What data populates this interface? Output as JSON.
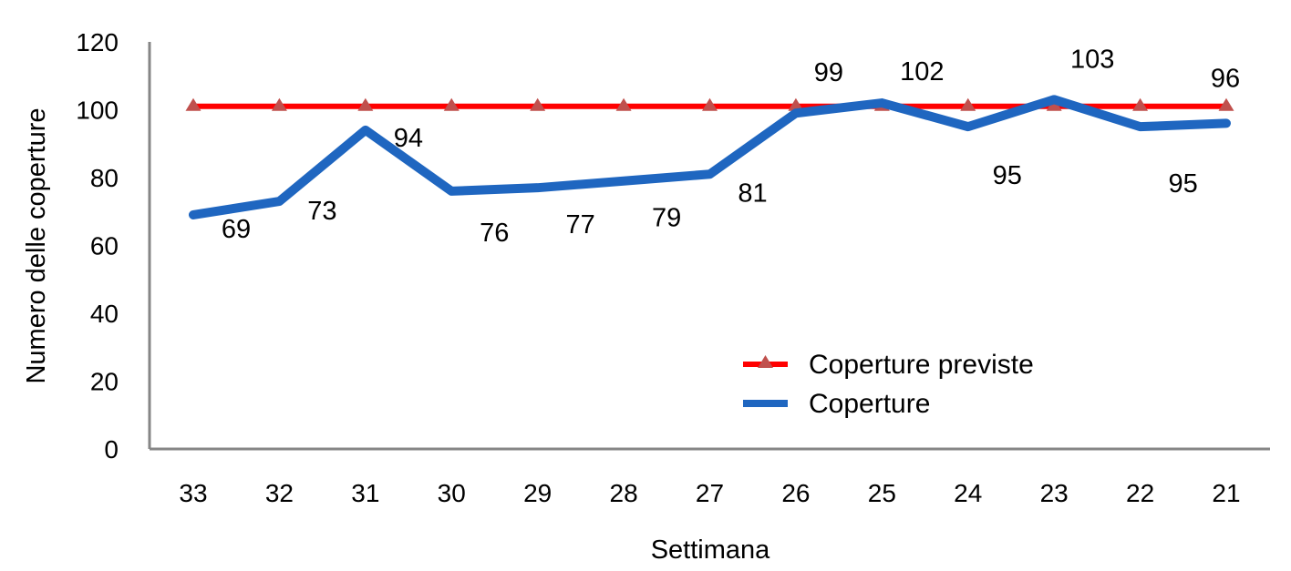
{
  "chart_data": {
    "type": "line",
    "title": "",
    "xlabel": "Settimana",
    "ylabel": "Numero delle coperture",
    "categories": [
      "33",
      "32",
      "31",
      "30",
      "29",
      "28",
      "27",
      "26",
      "25",
      "24",
      "23",
      "22",
      "21"
    ],
    "series": [
      {
        "name": "Coperture previste",
        "color": "#ff0000",
        "marker": "triangle",
        "marker_color": "#c0504d",
        "values": [
          101,
          101,
          101,
          101,
          101,
          101,
          101,
          101,
          101,
          101,
          101,
          101,
          101
        ]
      },
      {
        "name": "Coperture",
        "color": "#1f66c0",
        "marker": "none",
        "values": [
          69,
          73,
          94,
          76,
          77,
          79,
          81,
          99,
          102,
          95,
          103,
          95,
          96
        ],
        "labels": [
          "69",
          "73",
          "94",
          "76",
          "77",
          "79",
          "81",
          "99",
          "102",
          "95",
          "103",
          "95",
          "96"
        ]
      }
    ],
    "yticks": [
      "0",
      "20",
      "40",
      "60",
      "80",
      "100",
      "120"
    ],
    "ylim": [
      0,
      120
    ],
    "grid": false,
    "legend_position": "inside-lower-right"
  }
}
